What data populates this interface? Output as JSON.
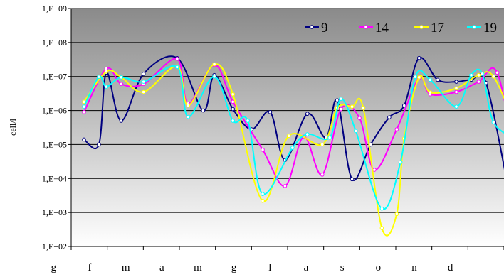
{
  "chart_data": {
    "type": "line",
    "title": "",
    "xlabel": "",
    "ylabel": "cell/l",
    "y_scale": "log",
    "ylim": [
      100,
      1000000000
    ],
    "y_tick_labels": [
      "1,E+02",
      "1,E+03",
      "1,E+04",
      "1,E+05",
      "1,E+06",
      "1,E+07",
      "1,E+08",
      "1,E+09"
    ],
    "y_tick_values": [
      100,
      1000,
      10000,
      100000,
      1000000,
      10000000,
      100000000,
      1000000000
    ],
    "x_month_labels": [
      "g",
      "f",
      "m",
      "a",
      "m",
      "g",
      "l",
      "a",
      "s",
      "o",
      "n",
      "d"
    ],
    "grid": "horizontal",
    "legend_position": "top-right",
    "series": [
      {
        "name": "9",
        "color": "#000080",
        "x": [
          0.0,
          0.4,
          0.6,
          1.0,
          1.6,
          2.5,
          3.2,
          3.5,
          4.0,
          4.5,
          5.0,
          5.4,
          6.0,
          6.5,
          6.8,
          7.2,
          7.7,
          8.2,
          8.6,
          9.0,
          9.5,
          10.0,
          10.4,
          10.8,
          11.4
        ],
        "y": [
          140000,
          100000,
          13000000,
          500000,
          12000000,
          35000000,
          1000000,
          11000000,
          1100000,
          280000,
          900000,
          35000,
          800000,
          160000,
          2000000,
          9500,
          100000,
          630000,
          1400000,
          35000000,
          8000000,
          7000000,
          8000000,
          6500000,
          5000
        ]
      },
      {
        "name": "14",
        "color": "#ff00ff",
        "x": [
          0.0,
          0.6,
          1.0,
          1.6,
          2.5,
          2.8,
          3.5,
          4.0,
          4.8,
          5.4,
          5.9,
          6.4,
          6.9,
          7.4,
          7.8,
          8.4,
          9.0,
          9.3,
          10.0,
          10.6,
          11.1,
          11.6
        ],
        "y": [
          900000,
          17000000,
          6000000,
          6000000,
          33000000,
          1600000,
          22000000,
          1800000,
          70000,
          6000,
          170000,
          13000,
          1100000,
          600000,
          18000,
          280000,
          9000000,
          3000000,
          3500000,
          7000000,
          13000000,
          30000
        ]
      },
      {
        "name": "17",
        "color": "#ffff00",
        "x": [
          0.0,
          0.6,
          1.0,
          1.6,
          2.5,
          2.8,
          3.5,
          4.0,
          4.8,
          5.5,
          6.4,
          6.8,
          7.2,
          7.5,
          8.0,
          8.4,
          8.6,
          9.0,
          9.3,
          10.0,
          10.6,
          11.0,
          11.6
        ],
        "y": [
          1800000,
          14000000,
          9500000,
          3500000,
          20000000,
          1400000,
          23000000,
          3000000,
          2200,
          180000,
          100000,
          1200000,
          1300000,
          1200000,
          350,
          900,
          150000,
          9500000,
          3400000,
          4500000,
          11000000,
          10000000,
          350000
        ]
      },
      {
        "name": "19",
        "color": "#00ffff",
        "x": [
          0.0,
          0.4,
          0.6,
          1.0,
          1.6,
          2.5,
          2.8,
          3.5,
          4.0,
          4.4,
          4.8,
          5.6,
          6.0,
          6.6,
          6.9,
          7.3,
          8.0,
          8.5,
          8.9,
          9.3,
          10.0,
          10.4,
          10.7,
          11.0,
          11.6
        ],
        "y": [
          1300000,
          9800000,
          5000000,
          9500000,
          7000000,
          19000000,
          650000,
          10000000,
          500000,
          500000,
          3500,
          80000,
          200000,
          160000,
          2200000,
          250000,
          1300,
          30000,
          9800000,
          8000000,
          1300000,
          11000000,
          12000000,
          450000,
          150000
        ]
      }
    ]
  }
}
